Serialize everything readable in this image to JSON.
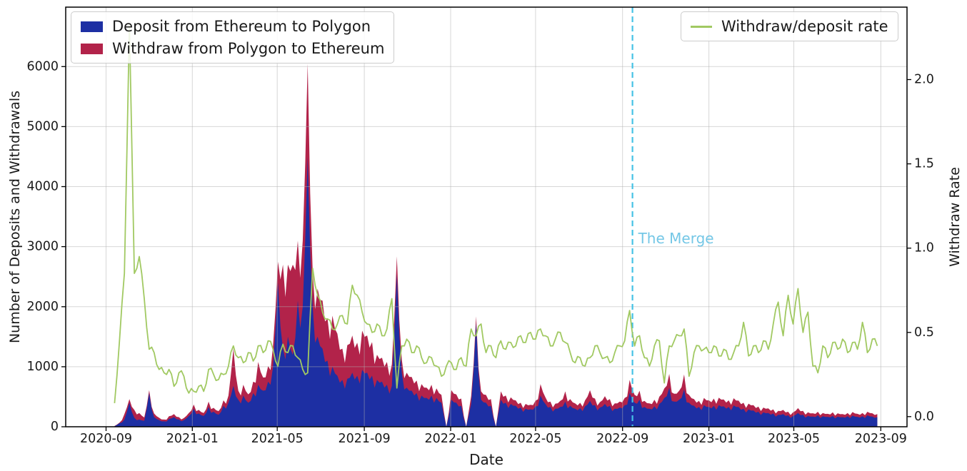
{
  "chart_data": {
    "type": "area",
    "title": "",
    "xlabel": "Date",
    "ylabel_left": "Number of Deposits and Withdrawals",
    "ylabel_right": "Withdraw Rate",
    "x_ticks": [
      "2020-09",
      "2021-01",
      "2021-05",
      "2021-09",
      "2022-01",
      "2022-05",
      "2022-09",
      "2023-01",
      "2023-05",
      "2023-09"
    ],
    "y_ticks_left": [
      0,
      1000,
      2000,
      3000,
      4000,
      5000,
      6000
    ],
    "y_ticks_right": [
      "0.0",
      "0.5",
      "1.0",
      "1.5",
      "2.0"
    ],
    "xlim": [
      "2020-07-06",
      "2023-10-08"
    ],
    "ylim_left": [
      0,
      6990
    ],
    "ylim_right": [
      -0.06,
      2.43
    ],
    "grid": "on",
    "grid_color": "#b0b0b0",
    "spine_color": "#000000",
    "tick_label_color": "#1a1a1a",
    "legend_positions": [
      "upper left",
      "upper right"
    ],
    "annotation": {
      "label": "The Merge",
      "date": "2022-09-15",
      "line_color": "#45c2e5",
      "text_color": "#74c7e6",
      "line_style": "dashed"
    },
    "x": [
      "2020-09-13",
      "2020-09-20",
      "2020-09-27",
      "2020-10-04",
      "2020-10-11",
      "2020-10-18",
      "2020-10-25",
      "2020-11-01",
      "2020-11-08",
      "2020-11-15",
      "2020-11-22",
      "2020-11-29",
      "2020-12-06",
      "2020-12-13",
      "2020-12-20",
      "2020-12-27",
      "2021-01-03",
      "2021-01-10",
      "2021-01-17",
      "2021-01-24",
      "2021-01-31",
      "2021-02-07",
      "2021-02-14",
      "2021-02-21",
      "2021-02-28",
      "2021-03-07",
      "2021-03-14",
      "2021-03-21",
      "2021-03-28",
      "2021-04-04",
      "2021-04-11",
      "2021-04-18",
      "2021-04-25",
      "2021-05-02",
      "2021-05-09",
      "2021-05-16",
      "2021-05-23",
      "2021-05-30",
      "2021-06-06",
      "2021-06-13",
      "2021-06-20",
      "2021-06-27",
      "2021-07-04",
      "2021-07-11",
      "2021-07-18",
      "2021-07-25",
      "2021-08-01",
      "2021-08-08",
      "2021-08-15",
      "2021-08-22",
      "2021-08-29",
      "2021-09-05",
      "2021-09-12",
      "2021-09-19",
      "2021-09-26",
      "2021-10-03",
      "2021-10-10",
      "2021-10-17",
      "2021-10-24",
      "2021-10-31",
      "2021-11-07",
      "2021-11-14",
      "2021-11-21",
      "2021-11-28",
      "2021-12-05",
      "2021-12-12",
      "2021-12-19",
      "2021-12-26",
      "2022-01-02",
      "2022-01-09",
      "2022-01-16",
      "2022-01-23",
      "2022-01-30",
      "2022-02-06",
      "2022-02-13",
      "2022-02-20",
      "2022-02-27",
      "2022-03-06",
      "2022-03-13",
      "2022-03-20",
      "2022-03-27",
      "2022-04-03",
      "2022-04-10",
      "2022-04-17",
      "2022-04-24",
      "2022-05-01",
      "2022-05-08",
      "2022-05-15",
      "2022-05-22",
      "2022-05-29",
      "2022-06-05",
      "2022-06-12",
      "2022-06-19",
      "2022-06-26",
      "2022-07-03",
      "2022-07-10",
      "2022-07-17",
      "2022-07-24",
      "2022-07-31",
      "2022-08-07",
      "2022-08-14",
      "2022-08-21",
      "2022-08-28",
      "2022-09-04",
      "2022-09-11",
      "2022-09-18",
      "2022-09-25",
      "2022-10-02",
      "2022-10-09",
      "2022-10-16",
      "2022-10-23",
      "2022-10-30",
      "2022-11-06",
      "2022-11-13",
      "2022-11-20",
      "2022-11-27",
      "2022-12-04",
      "2022-12-11",
      "2022-12-18",
      "2022-12-25",
      "2023-01-01",
      "2023-01-08",
      "2023-01-15",
      "2023-01-22",
      "2023-01-29",
      "2023-02-05",
      "2023-02-12",
      "2023-02-19",
      "2023-02-26",
      "2023-03-05",
      "2023-03-12",
      "2023-03-19",
      "2023-03-26",
      "2023-04-02",
      "2023-04-09",
      "2023-04-16",
      "2023-04-23",
      "2023-04-30",
      "2023-05-07",
      "2023-05-14",
      "2023-05-21",
      "2023-05-28",
      "2023-06-04",
      "2023-06-11",
      "2023-06-18",
      "2023-06-25",
      "2023-07-02",
      "2023-07-09",
      "2023-07-16",
      "2023-07-23",
      "2023-07-30",
      "2023-08-06",
      "2023-08-13",
      "2023-08-20",
      "2023-08-27"
    ],
    "series": [
      {
        "name": "Deposit from Ethereum to Polygon",
        "type": "area-stacked",
        "axis": "left",
        "color": "#1d2fa3",
        "values": [
          10,
          60,
          120,
          400,
          150,
          120,
          100,
          560,
          160,
          110,
          90,
          130,
          160,
          120,
          110,
          180,
          300,
          220,
          180,
          330,
          250,
          200,
          350,
          400,
          680,
          450,
          520,
          400,
          560,
          700,
          600,
          750,
          1000,
          2400,
          1300,
          1500,
          1200,
          2100,
          2000,
          4500,
          2000,
          1500,
          1300,
          1100,
          1000,
          850,
          780,
          800,
          900,
          850,
          950,
          900,
          850,
          780,
          750,
          700,
          680,
          2540,
          900,
          650,
          600,
          560,
          520,
          480,
          520,
          480,
          400,
          0,
          450,
          400,
          350,
          0,
          380,
          1720,
          450,
          400,
          350,
          0,
          450,
          400,
          380,
          350,
          320,
          300,
          290,
          340,
          520,
          380,
          330,
          300,
          330,
          420,
          350,
          300,
          310,
          340,
          430,
          360,
          320,
          380,
          350,
          300,
          320,
          360,
          560,
          400,
          450,
          330,
          300,
          340,
          380,
          480,
          650,
          420,
          450,
          620,
          400,
          350,
          330,
          360,
          330,
          350,
          360,
          340,
          330,
          355,
          330,
          300,
          290,
          270,
          250,
          240,
          230,
          220,
          200,
          210,
          190,
          180,
          230,
          200,
          180,
          170,
          190,
          175,
          165,
          180,
          170,
          160,
          175,
          185,
          165,
          175,
          190,
          170,
          160
        ]
      },
      {
        "name": "Withdraw from Polygon to Ethereum",
        "type": "area-stacked",
        "axis": "left",
        "color": "#b2234a",
        "values": [
          3,
          8,
          90,
          60,
          130,
          110,
          55,
          50,
          60,
          40,
          30,
          45,
          50,
          40,
          35,
          50,
          70,
          60,
          50,
          90,
          65,
          60,
          90,
          120,
          620,
          150,
          180,
          140,
          190,
          380,
          220,
          260,
          350,
          350,
          1400,
          1200,
          1500,
          1000,
          1100,
          1550,
          600,
          800,
          800,
          700,
          850,
          700,
          520,
          560,
          620,
          550,
          650,
          620,
          560,
          420,
          400,
          380,
          360,
          300,
          220,
          250,
          230,
          210,
          190,
          170,
          180,
          160,
          130,
          0,
          160,
          140,
          120,
          0,
          130,
          120,
          140,
          130,
          110,
          0,
          140,
          120,
          110,
          90,
          80,
          80,
          75,
          95,
          190,
          110,
          90,
          85,
          100,
          170,
          110,
          90,
          90,
          100,
          180,
          110,
          90,
          130,
          110,
          90,
          100,
          120,
          220,
          130,
          150,
          100,
          90,
          110,
          120,
          160,
          230,
          130,
          150,
          250,
          130,
          110,
          100,
          120,
          110,
          120,
          125,
          115,
          110,
          120,
          105,
          100,
          95,
          90,
          85,
          80,
          75,
          70,
          65,
          70,
          60,
          60,
          80,
          65,
          60,
          55,
          60,
          55,
          50,
          60,
          55,
          50,
          55,
          60,
          50,
          55,
          60,
          55,
          50
        ]
      },
      {
        "name": "Withdraw/deposit rate",
        "type": "line",
        "axis": "right",
        "color": "#a1c962",
        "values": [
          0.08,
          0.45,
          0.85,
          2.33,
          0.85,
          0.95,
          0.7,
          0.4,
          0.38,
          0.28,
          0.26,
          0.28,
          0.18,
          0.26,
          0.24,
          0.14,
          0.15,
          0.18,
          0.15,
          0.28,
          0.25,
          0.22,
          0.25,
          0.3,
          0.42,
          0.35,
          0.32,
          0.38,
          0.33,
          0.42,
          0.38,
          0.45,
          0.4,
          0.3,
          0.43,
          0.38,
          0.42,
          0.35,
          0.28,
          0.26,
          0.88,
          0.72,
          0.62,
          0.58,
          0.52,
          0.55,
          0.6,
          0.55,
          0.78,
          0.72,
          0.62,
          0.55,
          0.5,
          0.55,
          0.48,
          0.52,
          0.7,
          0.17,
          0.42,
          0.46,
          0.38,
          0.42,
          0.35,
          0.32,
          0.35,
          0.3,
          0.24,
          0.3,
          0.32,
          0.28,
          0.35,
          0.3,
          0.52,
          0.48,
          0.55,
          0.38,
          0.42,
          0.35,
          0.45,
          0.4,
          0.44,
          0.42,
          0.48,
          0.44,
          0.5,
          0.46,
          0.52,
          0.48,
          0.42,
          0.46,
          0.5,
          0.44,
          0.38,
          0.32,
          0.35,
          0.3,
          0.35,
          0.42,
          0.38,
          0.35,
          0.32,
          0.38,
          0.42,
          0.45,
          0.63,
          0.42,
          0.48,
          0.35,
          0.3,
          0.42,
          0.45,
          0.2,
          0.42,
          0.45,
          0.48,
          0.52,
          0.24,
          0.38,
          0.42,
          0.4,
          0.38,
          0.42,
          0.36,
          0.4,
          0.34,
          0.38,
          0.42,
          0.56,
          0.36,
          0.42,
          0.38,
          0.45,
          0.4,
          0.55,
          0.68,
          0.48,
          0.72,
          0.55,
          0.76,
          0.5,
          0.62,
          0.3,
          0.26,
          0.42,
          0.35,
          0.44,
          0.4,
          0.46,
          0.38,
          0.44,
          0.4,
          0.56,
          0.38,
          0.46,
          0.42
        ]
      }
    ]
  }
}
